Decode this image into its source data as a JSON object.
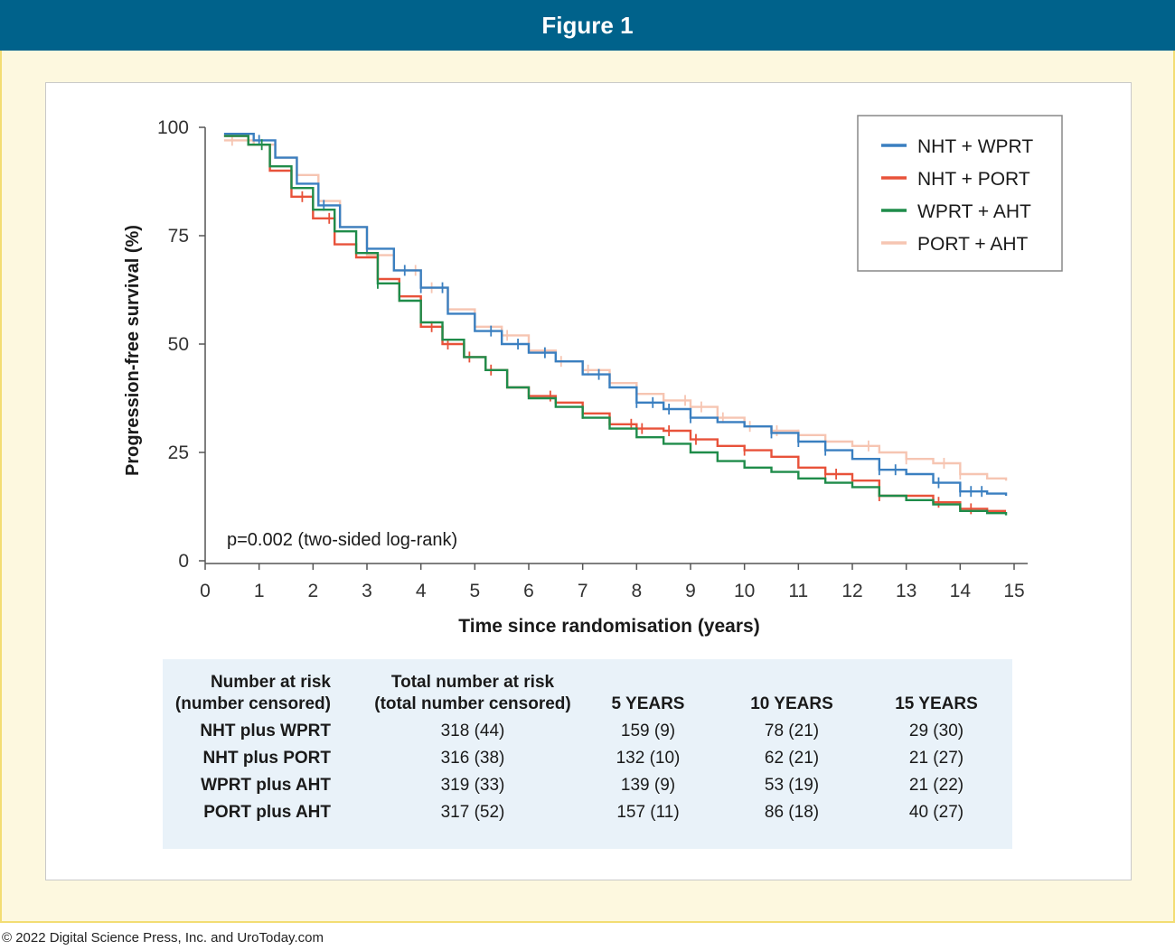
{
  "header": {
    "title": "Figure 1"
  },
  "chart_data": {
    "type": "line",
    "xlabel": "Time since randomisation (years)",
    "ylabel": "Progression-free survival (%)",
    "xlim": [
      0,
      15
    ],
    "ylim": [
      0,
      100
    ],
    "x_ticks": [
      "0",
      "1",
      "2",
      "3",
      "4",
      "5",
      "6",
      "7",
      "8",
      "9",
      "10",
      "11",
      "12",
      "13",
      "14",
      "15"
    ],
    "y_ticks": [
      "0",
      "25",
      "50",
      "75",
      "100"
    ],
    "annotation": "p=0.002 (two-sided log-rank)",
    "legend_position": "top-right",
    "series": [
      {
        "name": "NHT + WPRT",
        "color": "#3a7fc0",
        "points": [
          [
            0.35,
            98.5
          ],
          [
            0.9,
            97
          ],
          [
            1.3,
            93
          ],
          [
            1.7,
            87
          ],
          [
            2.1,
            82
          ],
          [
            2.5,
            77
          ],
          [
            3,
            72
          ],
          [
            3.5,
            67
          ],
          [
            4,
            63
          ],
          [
            4.5,
            57
          ],
          [
            5,
            53
          ],
          [
            5.5,
            50
          ],
          [
            6,
            48
          ],
          [
            6.5,
            46
          ],
          [
            7,
            43
          ],
          [
            7.5,
            40
          ],
          [
            8,
            36.5
          ],
          [
            8.5,
            35
          ],
          [
            9,
            33
          ],
          [
            9.5,
            32
          ],
          [
            10,
            31
          ],
          [
            10.5,
            29.5
          ],
          [
            11,
            27.5
          ],
          [
            11.5,
            25.5
          ],
          [
            12,
            23.5
          ],
          [
            12.5,
            21
          ],
          [
            13,
            20
          ],
          [
            13.5,
            18
          ],
          [
            14,
            16
          ],
          [
            14.5,
            15.5
          ],
          [
            14.85,
            15
          ]
        ],
        "censor_x": [
          1,
          2.2,
          3,
          3.7,
          4,
          4.4,
          5.3,
          5.8,
          6.3,
          7.3,
          8,
          8.3,
          8.6,
          9,
          10.5,
          11,
          11.5,
          12.5,
          12.8,
          13.6,
          14,
          14.2,
          14.4
        ]
      },
      {
        "name": "NHT + PORT",
        "color": "#e8523a",
        "points": [
          [
            0.35,
            98
          ],
          [
            0.8,
            96
          ],
          [
            1.2,
            90
          ],
          [
            1.6,
            84
          ],
          [
            2,
            79
          ],
          [
            2.4,
            73
          ],
          [
            2.8,
            70
          ],
          [
            3.2,
            65
          ],
          [
            3.6,
            61
          ],
          [
            4,
            54
          ],
          [
            4.4,
            50
          ],
          [
            4.8,
            47
          ],
          [
            5.2,
            44
          ],
          [
            5.6,
            40
          ],
          [
            6,
            38
          ],
          [
            6.5,
            36.5
          ],
          [
            7,
            34
          ],
          [
            7.5,
            31.5
          ],
          [
            8,
            30.5
          ],
          [
            8.5,
            30
          ],
          [
            9,
            28
          ],
          [
            9.5,
            26.5
          ],
          [
            10,
            25.5
          ],
          [
            10.5,
            24
          ],
          [
            11,
            21.5
          ],
          [
            11.5,
            20
          ],
          [
            12,
            18.5
          ],
          [
            12.5,
            15
          ],
          [
            13,
            15
          ],
          [
            13.5,
            13.5
          ],
          [
            14,
            12
          ],
          [
            14.5,
            11.5
          ],
          [
            14.85,
            11.5
          ]
        ],
        "censor_x": [
          1.8,
          2.3,
          3.6,
          4.2,
          4.5,
          4.9,
          5.3,
          6.4,
          7,
          7.9,
          8.1,
          8.6,
          9.1,
          10,
          11.5,
          11.7,
          12.5,
          13.6,
          14.2
        ]
      },
      {
        "name": "WPRT + AHT",
        "color": "#1f8c4a",
        "points": [
          [
            0.35,
            98
          ],
          [
            0.8,
            96
          ],
          [
            1.2,
            91
          ],
          [
            1.6,
            86
          ],
          [
            2,
            81
          ],
          [
            2.4,
            76
          ],
          [
            2.8,
            71
          ],
          [
            3.2,
            64
          ],
          [
            3.6,
            60
          ],
          [
            4,
            55
          ],
          [
            4.4,
            51
          ],
          [
            4.8,
            47
          ],
          [
            5.2,
            44
          ],
          [
            5.6,
            40
          ],
          [
            6,
            37.5
          ],
          [
            6.5,
            35.5
          ],
          [
            7,
            33
          ],
          [
            7.5,
            30.5
          ],
          [
            8,
            28.5
          ],
          [
            8.5,
            27
          ],
          [
            9,
            25
          ],
          [
            9.5,
            23
          ],
          [
            10,
            21.5
          ],
          [
            10.5,
            20.5
          ],
          [
            11,
            19
          ],
          [
            11.5,
            18
          ],
          [
            12,
            17
          ],
          [
            12.5,
            15
          ],
          [
            13,
            14
          ],
          [
            13.5,
            13
          ],
          [
            14,
            11.5
          ],
          [
            14.5,
            11
          ],
          [
            14.85,
            10.5
          ]
        ],
        "censor_x": [
          1.05,
          3.2
        ]
      },
      {
        "name": "PORT + AHT",
        "color": "#f6c5b2",
        "points": [
          [
            0.35,
            97
          ],
          [
            0.9,
            96
          ],
          [
            1.3,
            93
          ],
          [
            1.7,
            89
          ],
          [
            2.1,
            83
          ],
          [
            2.5,
            77
          ],
          [
            3,
            70.5
          ],
          [
            3.5,
            67
          ],
          [
            4,
            63
          ],
          [
            4.5,
            58
          ],
          [
            5,
            54
          ],
          [
            5.5,
            52
          ],
          [
            6,
            48.5
          ],
          [
            6.5,
            46
          ],
          [
            7,
            44
          ],
          [
            7.5,
            41
          ],
          [
            8,
            38.5
          ],
          [
            8.5,
            37
          ],
          [
            9,
            35.5
          ],
          [
            9.5,
            33
          ],
          [
            10,
            31
          ],
          [
            10.5,
            30
          ],
          [
            11,
            29
          ],
          [
            11.5,
            27.5
          ],
          [
            12,
            26.5
          ],
          [
            12.5,
            25
          ],
          [
            13,
            23.5
          ],
          [
            13.5,
            22.5
          ],
          [
            14,
            20
          ],
          [
            14.5,
            19
          ],
          [
            14.85,
            18.5
          ]
        ],
        "censor_x": [
          0.5,
          3.9,
          4.2,
          5.6,
          6.6,
          7.1,
          8.9,
          9.2,
          9.6,
          10.1,
          10.6,
          11,
          12.3,
          13,
          13.7,
          14
        ]
      }
    ]
  },
  "risk_table": {
    "col_headers": {
      "label_line1": "Number at risk",
      "label_line2": "(number censored)",
      "total_line1": "Total number at risk",
      "total_line2": "(total number censored)",
      "y5": "5 YEARS",
      "y10": "10 YEARS",
      "y15": "15 YEARS"
    },
    "rows": [
      {
        "label": "NHT plus WPRT",
        "total": "318 (44)",
        "y5": "159 (9)",
        "y10": "78 (21)",
        "y15": "29 (30)"
      },
      {
        "label": "NHT plus PORT",
        "total": "316 (38)",
        "y5": "132 (10)",
        "y10": "62 (21)",
        "y15": "21 (27)"
      },
      {
        "label": "WPRT plus AHT",
        "total": "319 (33)",
        "y5": "139 (9)",
        "y10": "53 (19)",
        "y15": "21 (22)"
      },
      {
        "label": "PORT plus AHT",
        "total": "317 (52)",
        "y5": "157 (11)",
        "y10": "86 (18)",
        "y15": "40 (27)"
      }
    ]
  },
  "footer": {
    "copyright": "© 2022 Digital Science Press, Inc. and UroToday.com"
  }
}
